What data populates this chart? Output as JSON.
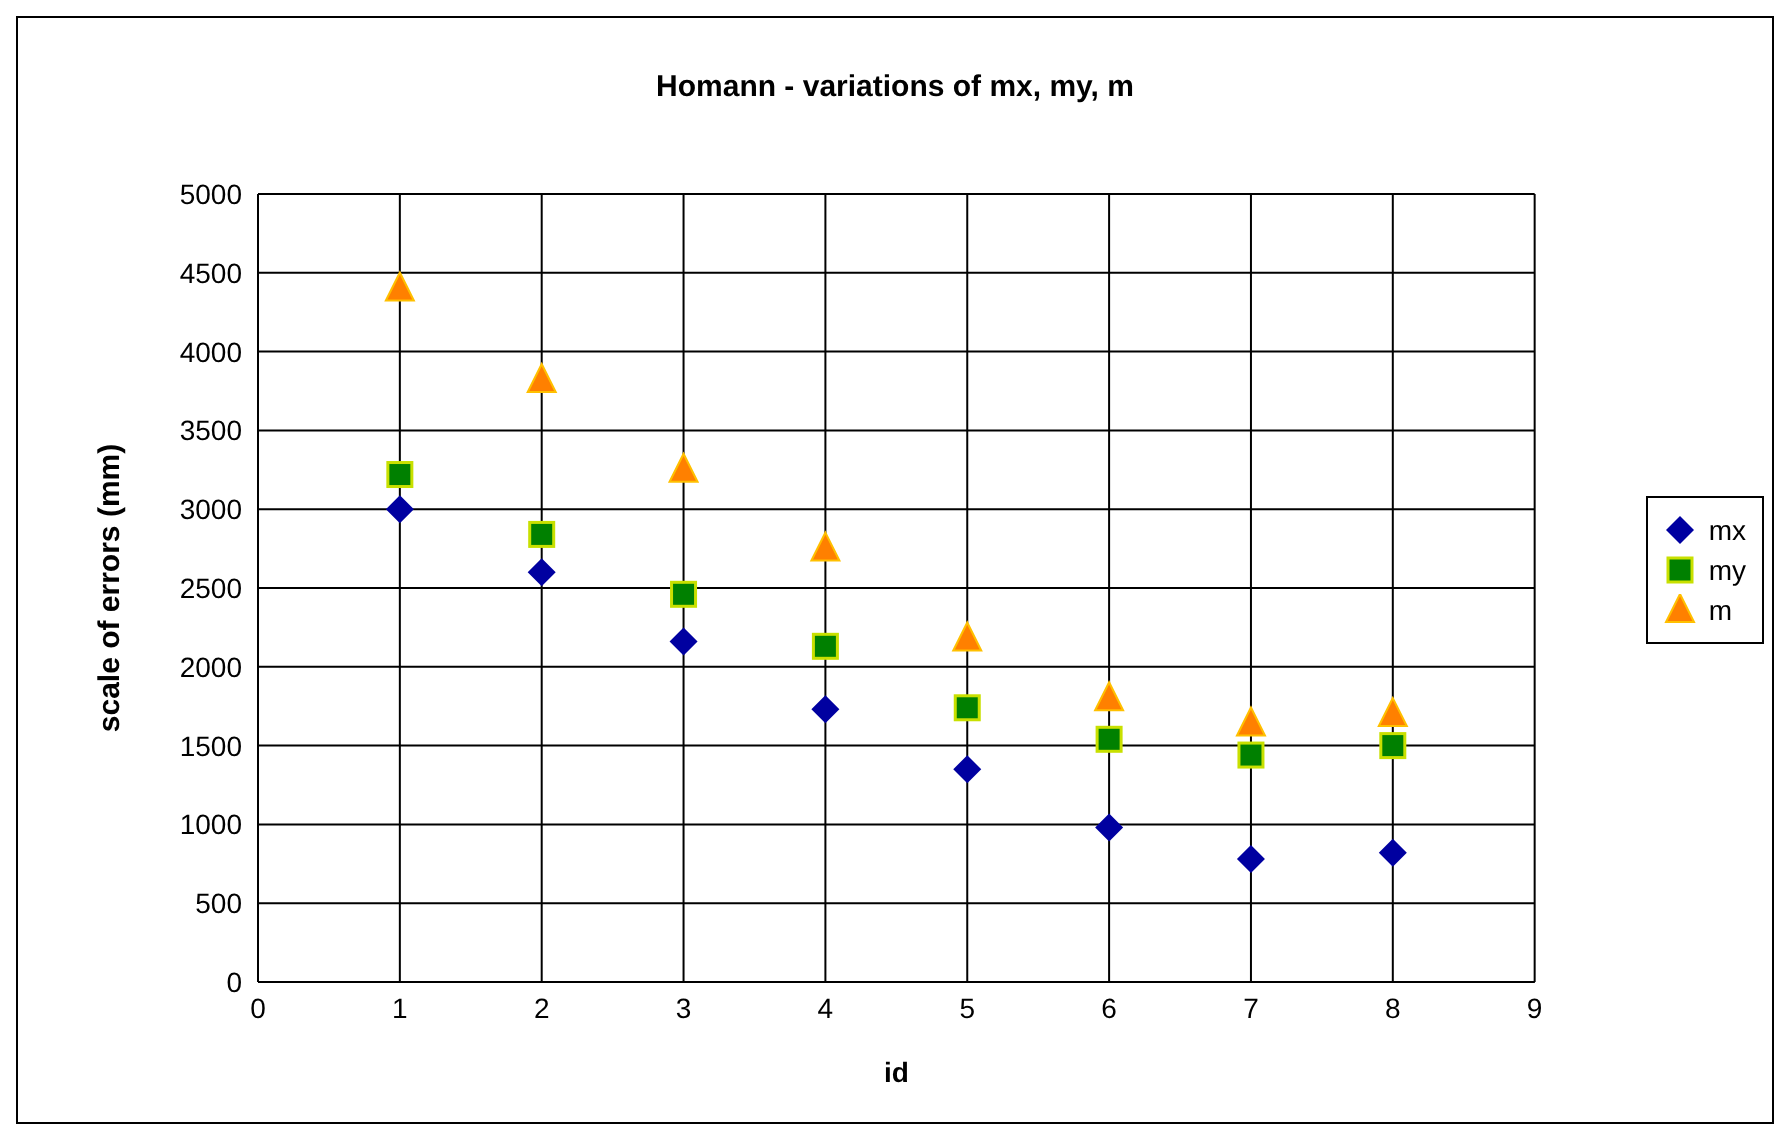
{
  "chart_data": {
    "type": "scatter",
    "title": "Homann - variations of mx, my, m",
    "xlabel": "id",
    "ylabel": "scale of errors (mm)",
    "x": [
      1,
      2,
      3,
      4,
      5,
      6,
      7,
      8
    ],
    "series": [
      {
        "name": "mx",
        "color": "#0000a0",
        "marker": "diamond",
        "values": [
          3000,
          2600,
          2160,
          1730,
          1350,
          980,
          780,
          820
        ]
      },
      {
        "name": "my",
        "color": "#008000",
        "marker": "square",
        "values": [
          3220,
          2840,
          2460,
          2130,
          1740,
          1540,
          1440,
          1500
        ]
      },
      {
        "name": "m",
        "color": "#ff8000",
        "marker": "triangle",
        "values": [
          4400,
          3820,
          3250,
          2750,
          2180,
          1800,
          1640,
          1700
        ]
      }
    ],
    "xlim": [
      0,
      9
    ],
    "xticks": [
      0,
      1,
      2,
      3,
      4,
      5,
      6,
      7,
      8,
      9
    ],
    "ylim": [
      0,
      5000
    ],
    "yticks": [
      0,
      500,
      1000,
      1500,
      2000,
      2500,
      3000,
      3500,
      4000,
      4500,
      5000
    ],
    "grid": true,
    "legend": "right"
  }
}
